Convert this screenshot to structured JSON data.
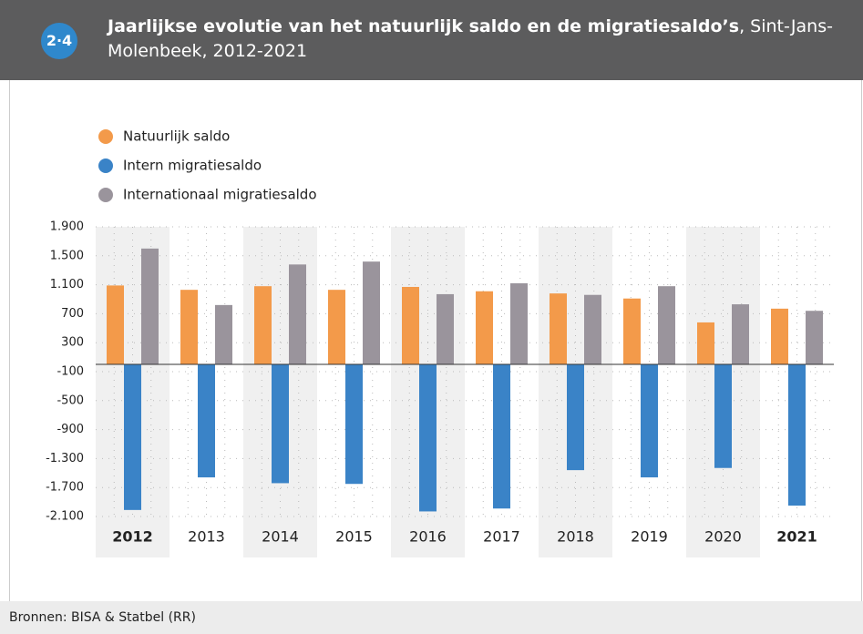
{
  "figure_number": "2·4",
  "chart_data": {
    "type": "bar",
    "title": "Jaarlijkse evolutie van het natuurlijk saldo en de migratiesaldo’s",
    "subtitle": ", Sint-Jans-Molenbeek, 2012-2021",
    "categories": [
      "2012",
      "2013",
      "2014",
      "2015",
      "2016",
      "2017",
      "2018",
      "2019",
      "2020",
      "2021"
    ],
    "series": [
      {
        "name": "Natuurlijk saldo",
        "color": "#f39a4a",
        "values": [
          1090,
          1030,
          1080,
          1030,
          1070,
          1010,
          980,
          910,
          580,
          770
        ]
      },
      {
        "name": "Intern migratiesaldo",
        "color": "#3a83c7",
        "values": [
          -2010,
          -1560,
          -1640,
          -1650,
          -2030,
          -1990,
          -1460,
          -1560,
          -1430,
          -1950
        ]
      },
      {
        "name": "Internationaal migratiesaldo",
        "color": "#9a949c",
        "values": [
          1600,
          820,
          1380,
          1420,
          970,
          1120,
          960,
          1080,
          830,
          740
        ]
      }
    ],
    "ylim": [
      -2100,
      1900
    ],
    "yticks": [
      {
        "value": 1900,
        "label": "1.900"
      },
      {
        "value": 1500,
        "label": "1.500"
      },
      {
        "value": 1100,
        "label": "1.100"
      },
      700,
      300,
      -100,
      -500,
      -900,
      {
        "value": -1300,
        "label": "-1.300"
      },
      {
        "value": -1700,
        "label": "-1.700"
      },
      {
        "value": -2100,
        "label": "-2.100"
      }
    ],
    "grid": true,
    "source": "Bronnen: BISA & Statbel (RR)"
  }
}
